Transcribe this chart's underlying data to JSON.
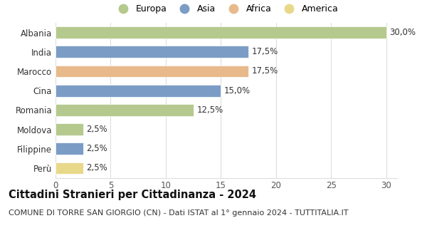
{
  "categories": [
    "Albania",
    "India",
    "Marocco",
    "Cina",
    "Romania",
    "Moldova",
    "Filippine",
    "Perù"
  ],
  "values": [
    30.0,
    17.5,
    17.5,
    15.0,
    12.5,
    2.5,
    2.5,
    2.5
  ],
  "bar_colors": [
    "#b5c98e",
    "#7b9dc5",
    "#e8b98a",
    "#7b9dc5",
    "#b5c98e",
    "#b5c98e",
    "#7b9dc5",
    "#e8d88a"
  ],
  "legend_labels": [
    "Europa",
    "Asia",
    "Africa",
    "America"
  ],
  "legend_colors": [
    "#b5c98e",
    "#7b9dc5",
    "#e8b98a",
    "#e8d88a"
  ],
  "xlim": [
    0,
    31
  ],
  "xticks": [
    0,
    5,
    10,
    15,
    20,
    25,
    30
  ],
  "title": "Cittadini Stranieri per Cittadinanza - 2024",
  "subtitle": "COMUNE DI TORRE SAN GIORGIO (CN) - Dati ISTAT al 1° gennaio 2024 - TUTTITALIA.IT",
  "title_fontsize": 10.5,
  "subtitle_fontsize": 8.0,
  "label_fontsize": 8.5,
  "tick_fontsize": 8.5,
  "legend_fontsize": 9,
  "bar_height": 0.62,
  "background_color": "#ffffff",
  "grid_color": "#dddddd"
}
